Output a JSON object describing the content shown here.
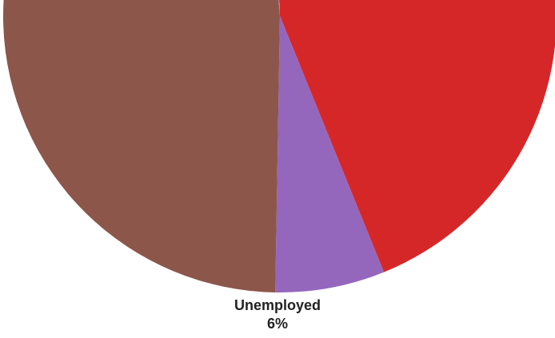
{
  "chart_data": {
    "type": "pie",
    "title": "",
    "slices": [
      {
        "label": "",
        "value": 0.4,
        "percent_label": "",
        "color": "#2ca02c"
      },
      {
        "label": "",
        "value": 44.3,
        "percent_label": "",
        "color": "#d62728"
      },
      {
        "label": "Unemployed",
        "value": 6.4,
        "percent_label": "6%",
        "color": "#9467bd"
      },
      {
        "label": "",
        "value": 48.4,
        "percent_label": "",
        "color": "#8c564b"
      },
      {
        "label": "",
        "value": 0.5,
        "percent_label": "",
        "color": "#e377c2"
      }
    ],
    "legend": "none"
  }
}
